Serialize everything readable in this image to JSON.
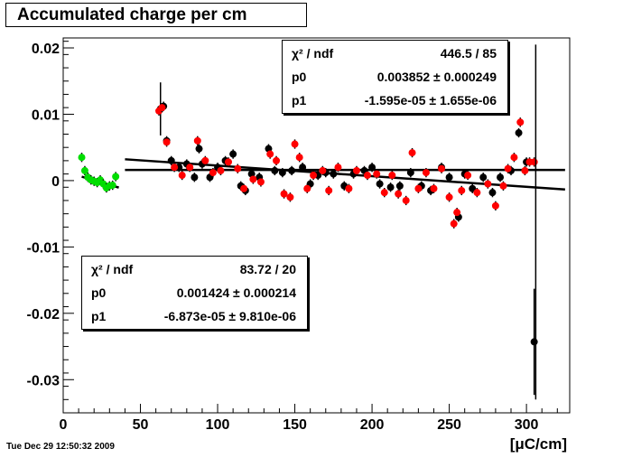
{
  "colors": {
    "black_series": "#000000",
    "red_series": "#ff0000",
    "green_series": "#00dd00"
  },
  "chart_data": {
    "type": "scatter",
    "title": "Accumulated charge per cm",
    "xlabel": "[μC/cm]",
    "ylabel": "",
    "xlim": [
      0,
      328
    ],
    "ylim": [
      -0.035,
      0.0215
    ],
    "x_ticks": [
      0,
      50,
      100,
      150,
      200,
      250,
      300
    ],
    "x_tick_labels": [
      "0",
      "50",
      "100",
      "150",
      "200",
      "250",
      "300"
    ],
    "y_ticks": [
      -0.03,
      -0.02,
      -0.01,
      0,
      0.01,
      0.02
    ],
    "y_tick_labels": [
      "-0.03",
      "-0.02",
      "-0.01",
      "0",
      "0.01",
      "0.02"
    ],
    "grid": false,
    "timestamp": "Tue Dec 29 12:50:32 2009",
    "series": [
      {
        "color": "#00dd00",
        "points": [
          [
            12,
            0.0035
          ],
          [
            14,
            0.0015
          ],
          [
            16,
            0.0005
          ],
          [
            18,
            0.0001
          ],
          [
            20,
            -0.0001
          ],
          [
            22,
            -0.0003
          ],
          [
            24,
            0.0001
          ],
          [
            26,
            -0.0005
          ],
          [
            28,
            -0.0011
          ],
          [
            30,
            -0.0008
          ],
          [
            32,
            -0.0007
          ],
          [
            34,
            0.0006
          ]
        ]
      },
      {
        "color": "#000000",
        "points": [
          [
            63,
            0.0108
          ],
          [
            65,
            0.0112
          ],
          [
            67,
            0.006
          ],
          [
            70,
            0.003
          ],
          [
            75,
            0.002
          ],
          [
            80,
            0.0025
          ],
          [
            85,
            0.0005
          ],
          [
            88,
            0.0048
          ],
          [
            90,
            0.0025
          ],
          [
            95,
            0.0005
          ],
          [
            100,
            0.002
          ],
          [
            105,
            0.003
          ],
          [
            110,
            0.004
          ],
          [
            115,
            -0.0008
          ],
          [
            118,
            -0.0015
          ],
          [
            122,
            0.001
          ],
          [
            127,
            0.0005
          ],
          [
            133,
            0.0048
          ],
          [
            137,
            0.0015
          ],
          [
            142,
            0.0012
          ],
          [
            148,
            0.0015
          ],
          [
            155,
            0.002
          ],
          [
            160,
            -0.0005
          ],
          [
            165,
            0.0008
          ],
          [
            170,
            0.0012
          ],
          [
            175,
            0.001
          ],
          [
            182,
            -0.0008
          ],
          [
            188,
            0.001
          ],
          [
            195,
            0.0015
          ],
          [
            200,
            0.002
          ],
          [
            205,
            -0.0005
          ],
          [
            212,
            -0.001
          ],
          [
            218,
            -0.0008
          ],
          [
            225,
            0.0012
          ],
          [
            232,
            -0.0008
          ],
          [
            238,
            -0.0015
          ],
          [
            245,
            0.002
          ],
          [
            250,
            0.0005
          ],
          [
            256,
            -0.0055
          ],
          [
            260,
            0.001
          ],
          [
            265,
            -0.0012
          ],
          [
            272,
            0.0005
          ],
          [
            278,
            -0.0018
          ],
          [
            283,
            0.0005
          ],
          [
            290,
            0.0015
          ],
          [
            295,
            0.0072
          ],
          [
            300,
            0.0028
          ],
          [
            305,
            -0.0243
          ]
        ]
      },
      {
        "color": "#ff0000",
        "points": [
          [
            62,
            0.0105
          ],
          [
            64,
            0.011
          ],
          [
            67,
            0.0058
          ],
          [
            72,
            0.002
          ],
          [
            77,
            0.0008
          ],
          [
            82,
            0.002
          ],
          [
            87,
            0.006
          ],
          [
            92,
            0.003
          ],
          [
            97,
            0.0012
          ],
          [
            102,
            0.0015
          ],
          [
            107,
            0.0028
          ],
          [
            113,
            0.0018
          ],
          [
            117,
            -0.0012
          ],
          [
            123,
            0.0002
          ],
          [
            128,
            -0.0002
          ],
          [
            134,
            0.004
          ],
          [
            138,
            0.003
          ],
          [
            143,
            -0.002
          ],
          [
            147,
            -0.0025
          ],
          [
            150,
            0.0055
          ],
          [
            153,
            0.0035
          ],
          [
            158,
            -0.0012
          ],
          [
            162,
            0.0008
          ],
          [
            168,
            0.0015
          ],
          [
            172,
            -0.0015
          ],
          [
            178,
            0.002
          ],
          [
            185,
            -0.0012
          ],
          [
            190,
            0.0015
          ],
          [
            197,
            0.0008
          ],
          [
            203,
            0.001
          ],
          [
            208,
            -0.0018
          ],
          [
            213,
            0.0008
          ],
          [
            217,
            -0.002
          ],
          [
            222,
            -0.003
          ],
          [
            226,
            0.0042
          ],
          [
            230,
            -0.0012
          ],
          [
            235,
            0.0012
          ],
          [
            240,
            -0.0012
          ],
          [
            245,
            0.0018
          ],
          [
            250,
            -0.0025
          ],
          [
            253,
            -0.0065
          ],
          [
            255,
            -0.0048
          ],
          [
            258,
            -0.0015
          ],
          [
            262,
            0.0008
          ],
          [
            268,
            -0.0018
          ],
          [
            275,
            -0.0005
          ],
          [
            280,
            -0.0038
          ],
          [
            285,
            -0.0008
          ],
          [
            288,
            0.0018
          ],
          [
            292,
            0.0035
          ],
          [
            296,
            0.0088
          ],
          [
            299,
            0.0015
          ],
          [
            302,
            0.0028
          ],
          [
            305,
            0.0028
          ]
        ]
      }
    ],
    "fits": [
      {
        "x_range": [
          12,
          36
        ],
        "p0": 0.001424,
        "p1": -6.873e-05
      },
      {
        "x_range": [
          40,
          325
        ],
        "p0": 0.003852,
        "p1": -1.595e-05,
        "overlap_line": true
      }
    ],
    "stat_boxes": [
      {
        "chi2_label": "χ² / ndf",
        "chi2_value": "446.5 / 85",
        "p0_label": "p0",
        "p0_value": "0.003852 ± 0.000249",
        "p1_label": "p1",
        "p1_value": "-1.595e-05 ± 1.655e-06"
      },
      {
        "chi2_label": "χ² / ndf",
        "chi2_value": "83.72 / 20",
        "p0_label": "p0",
        "p0_value": "0.001424 ± 0.000214",
        "p1_label": "p1",
        "p1_value": "-6.873e-05 ± 9.810e-06"
      }
    ]
  }
}
